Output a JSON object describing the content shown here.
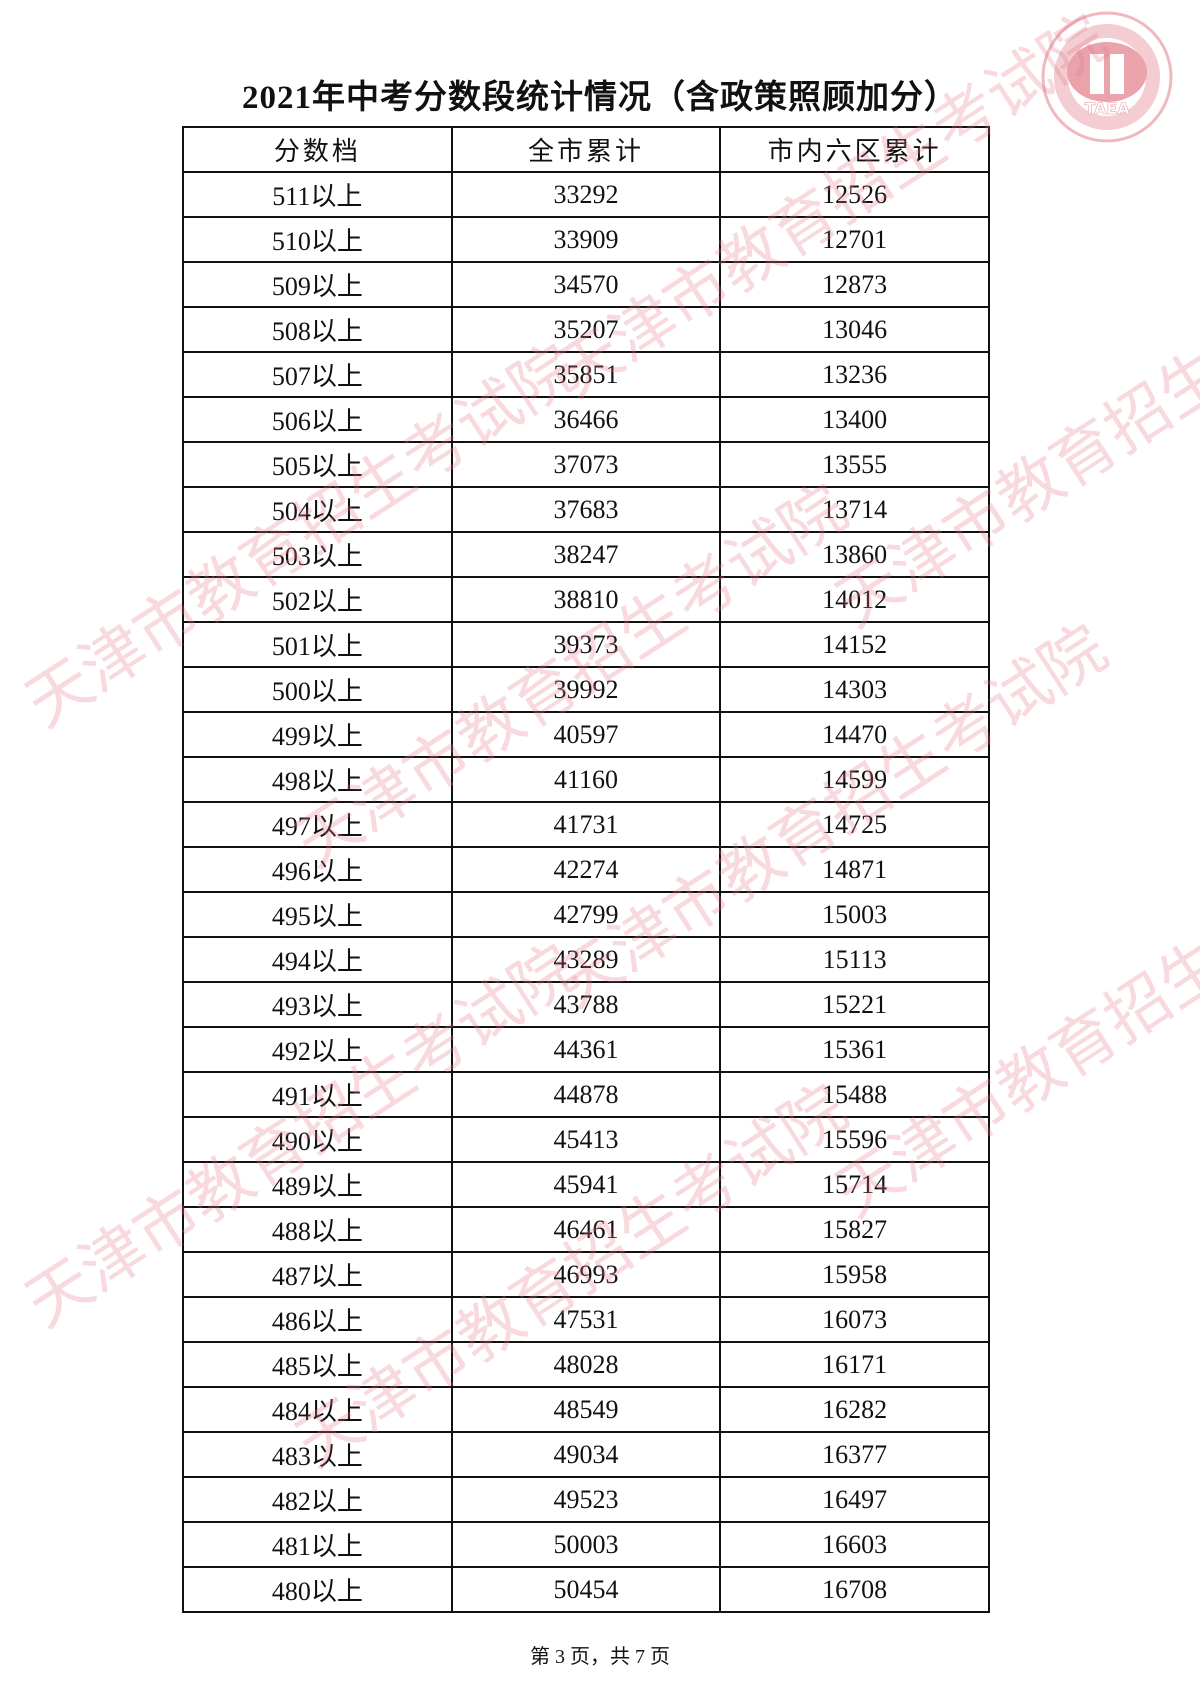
{
  "title": "2021年中考分数段统计情况（含政策照顾加分）",
  "table": {
    "headers": [
      "分数档",
      "全市累计",
      "市内六区累计"
    ],
    "rows": [
      [
        "511以上",
        "33292",
        "12526"
      ],
      [
        "510以上",
        "33909",
        "12701"
      ],
      [
        "509以上",
        "34570",
        "12873"
      ],
      [
        "508以上",
        "35207",
        "13046"
      ],
      [
        "507以上",
        "35851",
        "13236"
      ],
      [
        "506以上",
        "36466",
        "13400"
      ],
      [
        "505以上",
        "37073",
        "13555"
      ],
      [
        "504以上",
        "37683",
        "13714"
      ],
      [
        "503以上",
        "38247",
        "13860"
      ],
      [
        "502以上",
        "38810",
        "14012"
      ],
      [
        "501以上",
        "39373",
        "14152"
      ],
      [
        "500以上",
        "39992",
        "14303"
      ],
      [
        "499以上",
        "40597",
        "14470"
      ],
      [
        "498以上",
        "41160",
        "14599"
      ],
      [
        "497以上",
        "41731",
        "14725"
      ],
      [
        "496以上",
        "42274",
        "14871"
      ],
      [
        "495以上",
        "42799",
        "15003"
      ],
      [
        "494以上",
        "43289",
        "15113"
      ],
      [
        "493以上",
        "43788",
        "15221"
      ],
      [
        "492以上",
        "44361",
        "15361"
      ],
      [
        "491以上",
        "44878",
        "15488"
      ],
      [
        "490以上",
        "45413",
        "15596"
      ],
      [
        "489以上",
        "45941",
        "15714"
      ],
      [
        "488以上",
        "46461",
        "15827"
      ],
      [
        "487以上",
        "46993",
        "15958"
      ],
      [
        "486以上",
        "47531",
        "16073"
      ],
      [
        "485以上",
        "48028",
        "16171"
      ],
      [
        "484以上",
        "48549",
        "16282"
      ],
      [
        "483以上",
        "49034",
        "16377"
      ],
      [
        "482以上",
        "49523",
        "16497"
      ],
      [
        "481以上",
        "50003",
        "16603"
      ],
      [
        "480以上",
        "50454",
        "16708"
      ]
    ]
  },
  "footer": "第 3 页，共 7 页",
  "watermark": "天津市教育招生考试院",
  "logo": {
    "text": "TAEA",
    "color": "#e8a0a8"
  }
}
